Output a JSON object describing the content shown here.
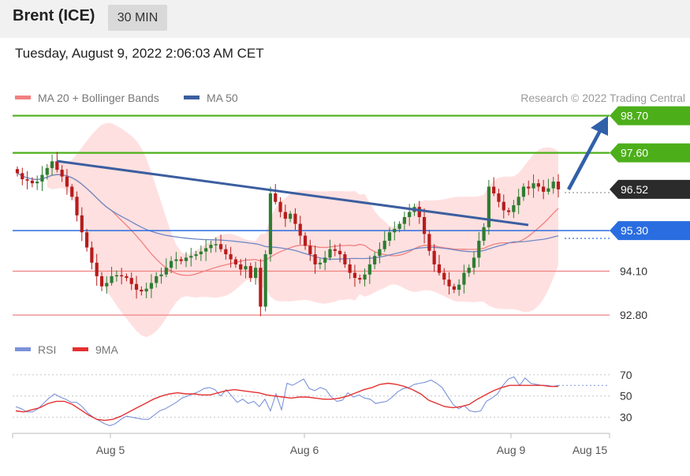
{
  "header": {
    "symbol": "Brent (ICE)",
    "timeframe": "30 MIN",
    "timestamp": "Tuesday, August 9, 2022 2:06:03 AM CET"
  },
  "legend": {
    "ma20": "MA 20 + Bollinger Bands",
    "ma50": "MA 50",
    "credit": "Research © 2022 Trading Central"
  },
  "rsi_legend": {
    "rsi": "RSI",
    "ma9": "9MA"
  },
  "colors": {
    "up": "#2e7d32",
    "down": "#b71c1c",
    "green_level": "#4caf1a",
    "blue_level": "#2a6de0",
    "red_level": "#f08080",
    "trend": "#3b5ea0",
    "band": "#ffd6d6",
    "ma20": "#f08080",
    "ma50": "#6f88c6",
    "rsi": "#7b92d8",
    "rsi_ma": "#e53030"
  },
  "chart_data": [
    {
      "type": "candlestick",
      "title": "Brent (ICE)",
      "ylim": [
        92.5,
        98.9
      ],
      "x_ticks": [
        "Aug 5",
        "Aug 6",
        "Aug 9",
        "Aug 15"
      ],
      "last_price": "96.52",
      "levels": [
        {
          "value": 98.7,
          "label": "98.70",
          "kind": "resistance",
          "color": "#4caf1a"
        },
        {
          "value": 97.6,
          "label": "97.60",
          "kind": "resistance",
          "color": "#4caf1a"
        },
        {
          "value": 95.3,
          "label": "95.30",
          "kind": "pivot",
          "color": "#2a6de0"
        },
        {
          "value": 94.1,
          "label": "94.10",
          "kind": "support",
          "color": "#f08080"
        },
        {
          "value": 92.8,
          "label": "92.80",
          "kind": "support",
          "color": "#f08080"
        }
      ],
      "closes": [
        97.0,
        96.82,
        96.78,
        96.7,
        96.75,
        96.95,
        97.15,
        97.35,
        97.1,
        96.9,
        96.6,
        96.3,
        95.75,
        95.25,
        94.8,
        94.35,
        93.95,
        93.65,
        93.75,
        93.95,
        93.98,
        93.95,
        93.9,
        93.72,
        93.55,
        93.5,
        93.58,
        93.75,
        93.95,
        94.0,
        94.2,
        94.4,
        94.45,
        94.4,
        94.5,
        94.55,
        94.6,
        94.68,
        94.78,
        94.88,
        94.9,
        94.75,
        94.6,
        94.45,
        94.3,
        94.15,
        94.25,
        93.9,
        94.2,
        93.05,
        94.6,
        96.4,
        96.15,
        95.85,
        95.65,
        95.8,
        95.5,
        95.15,
        94.85,
        94.6,
        94.3,
        94.35,
        94.5,
        94.75,
        94.7,
        94.6,
        94.3,
        94.05,
        93.9,
        93.85,
        94.0,
        94.3,
        94.55,
        94.75,
        95.0,
        95.25,
        95.35,
        95.5,
        95.7,
        95.85,
        96.0,
        95.7,
        95.2,
        94.7,
        94.3,
        94.05,
        93.85,
        93.65,
        93.55,
        93.7,
        94.05,
        94.2,
        94.5,
        95.0,
        95.4,
        96.6,
        96.4,
        96.15,
        95.9,
        95.85,
        96.05,
        96.3,
        96.6,
        96.55,
        96.7,
        96.6,
        96.45,
        96.55,
        96.75,
        96.52
      ]
    },
    {
      "type": "line",
      "title": "RSI",
      "ylim": [
        20,
        78
      ],
      "y_ticks": [
        70,
        50,
        30
      ],
      "series": [
        {
          "name": "RSI",
          "values": [
            40,
            38,
            35,
            35,
            38,
            43,
            48,
            52,
            49,
            47,
            44,
            44,
            40,
            34,
            30,
            27,
            24,
            22,
            24,
            28,
            31,
            30,
            29,
            28,
            28,
            32,
            36,
            38,
            41,
            44,
            48,
            50,
            52,
            54,
            57,
            58,
            56,
            50,
            56,
            50,
            44,
            47,
            43,
            45,
            40,
            47,
            36,
            52,
            37,
            62,
            60,
            63,
            66,
            57,
            55,
            58,
            56,
            49,
            45,
            46,
            53,
            49,
            51,
            48,
            47,
            43,
            44,
            45,
            49,
            54,
            57,
            58,
            61,
            62,
            63,
            65,
            62,
            58,
            50,
            42,
            38,
            41,
            36,
            35,
            36,
            45,
            48,
            52,
            60,
            66,
            68,
            60,
            67,
            62,
            61,
            60,
            60,
            59,
            60
          ]
        },
        {
          "name": "9MA",
          "values": [
            36,
            35,
            37,
            39,
            43,
            45,
            45,
            42,
            37,
            32,
            28,
            27,
            28,
            31,
            35,
            39,
            43,
            47,
            50,
            52,
            53,
            52,
            52,
            51,
            51,
            53,
            55,
            56,
            55,
            54,
            53,
            51,
            50,
            49,
            48,
            49,
            49,
            48,
            47,
            47,
            48,
            50,
            53,
            56,
            58,
            61,
            62,
            61,
            59,
            56,
            52,
            46,
            43,
            40,
            39,
            40,
            42,
            47,
            51,
            55,
            58,
            60,
            60,
            60,
            60,
            60,
            59,
            59
          ]
        }
      ]
    }
  ]
}
